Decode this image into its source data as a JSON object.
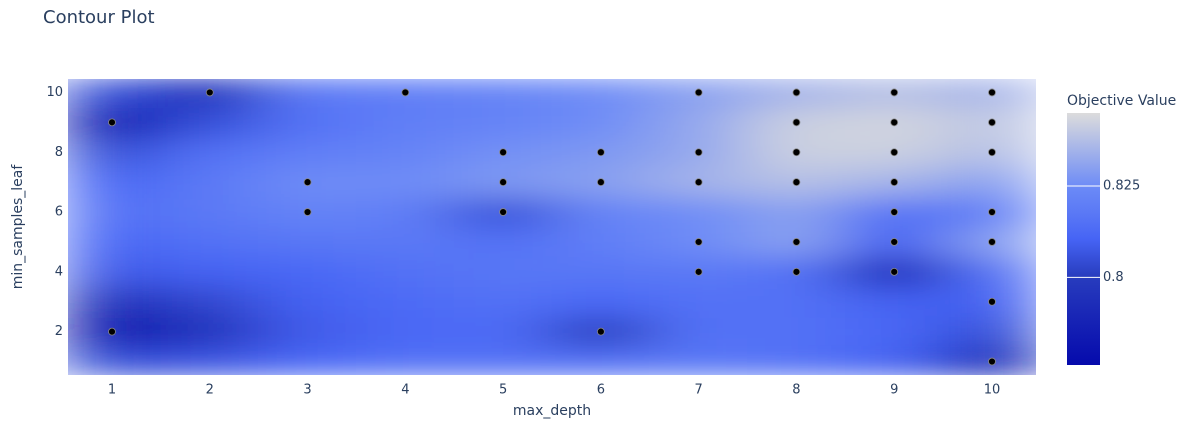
{
  "chart_data": {
    "type": "contour",
    "title": "Contour Plot",
    "x_label": "max_depth",
    "y_label": "min_samples_leaf",
    "colorbar_title": "Objective Value",
    "xlim": [
      0.55,
      10.45
    ],
    "ylim": [
      0.55,
      10.45
    ],
    "xticks": [
      1,
      2,
      3,
      4,
      5,
      6,
      7,
      8,
      9,
      10
    ],
    "yticks": [
      2,
      4,
      6,
      8,
      10
    ],
    "grid": false,
    "zlim": [
      0.776,
      0.845
    ],
    "zticks": [
      0.8,
      0.825
    ],
    "colorscale": [
      [
        0,
        "rgb(5,10,172)"
      ],
      [
        0.35,
        "rgb(40,60,190)"
      ],
      [
        0.5,
        "rgb(70,100,245)"
      ],
      [
        0.6,
        "rgb(90,120,245)"
      ],
      [
        0.7,
        "rgb(106,137,247)"
      ],
      [
        1,
        "rgb(220,220,220)"
      ]
    ],
    "z_x": [
      1,
      2,
      3,
      4,
      5,
      6,
      7,
      8,
      9,
      10
    ],
    "z_y": [
      1,
      2,
      3,
      4,
      5,
      6,
      7,
      8,
      9,
      10
    ],
    "z": [
      [
        0.805,
        0.807,
        0.812,
        0.815,
        0.815,
        0.815,
        0.817,
        0.815,
        0.81,
        0.79
      ],
      [
        0.78,
        0.795,
        0.808,
        0.812,
        0.813,
        0.8,
        0.815,
        0.815,
        0.812,
        0.805
      ],
      [
        0.795,
        0.803,
        0.81,
        0.813,
        0.815,
        0.812,
        0.815,
        0.815,
        0.81,
        0.81
      ],
      [
        0.808,
        0.81,
        0.812,
        0.815,
        0.817,
        0.817,
        0.818,
        0.815,
        0.79,
        0.815
      ],
      [
        0.812,
        0.815,
        0.817,
        0.818,
        0.815,
        0.82,
        0.825,
        0.83,
        0.81,
        0.83
      ],
      [
        0.815,
        0.818,
        0.822,
        0.82,
        0.805,
        0.822,
        0.825,
        0.83,
        0.815,
        0.82
      ],
      [
        0.812,
        0.818,
        0.825,
        0.825,
        0.828,
        0.83,
        0.835,
        0.838,
        0.835,
        0.83
      ],
      [
        0.805,
        0.815,
        0.82,
        0.822,
        0.826,
        0.828,
        0.832,
        0.842,
        0.842,
        0.838
      ],
      [
        0.78,
        0.805,
        0.815,
        0.82,
        0.822,
        0.825,
        0.832,
        0.842,
        0.843,
        0.84
      ],
      [
        0.805,
        0.795,
        0.818,
        0.82,
        0.822,
        0.825,
        0.83,
        0.835,
        0.838,
        0.835
      ]
    ],
    "trials": {
      "x": [
        1,
        1,
        2,
        3,
        3,
        4,
        5,
        5,
        5,
        6,
        6,
        6,
        7,
        7,
        7,
        7,
        7,
        8,
        8,
        8,
        8,
        8,
        8,
        9,
        9,
        9,
        9,
        9,
        9,
        9,
        10,
        10,
        10,
        10,
        10,
        10,
        10
      ],
      "y": [
        9,
        2,
        10,
        7,
        6,
        10,
        8,
        7,
        6,
        8,
        7,
        2,
        10,
        8,
        7,
        5,
        4,
        10,
        9,
        8,
        7,
        5,
        4,
        10,
        9,
        8,
        7,
        6,
        5,
        4,
        10,
        9,
        8,
        6,
        5,
        3,
        1
      ],
      "color": "#000000"
    }
  }
}
